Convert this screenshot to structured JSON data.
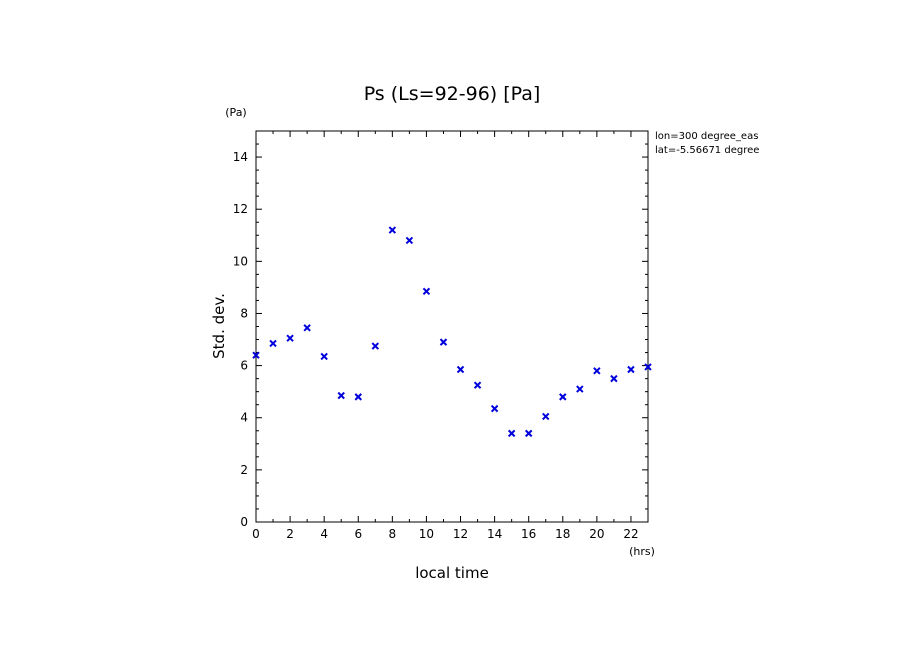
{
  "chart_data": {
    "type": "scatter",
    "title": "Ps (Ls=92-96) [Pa]",
    "xlabel": "local time",
    "ylabel": "Std. dev.",
    "x_unit": "(hrs)",
    "y_unit": "(Pa)",
    "annotations": [
      "lon=300 degree_eas",
      "lat=-5.56671 degree"
    ],
    "xlim": [
      0,
      23
    ],
    "ylim": [
      0,
      15
    ],
    "x_ticks": [
      0,
      2,
      4,
      6,
      8,
      10,
      12,
      14,
      16,
      18,
      20,
      22
    ],
    "y_ticks": [
      0,
      2,
      4,
      6,
      8,
      10,
      12,
      14
    ],
    "marker": "x",
    "marker_color": "#0000dd",
    "grid": false,
    "series": [
      {
        "x": [
          0,
          1,
          2,
          3,
          4,
          5,
          6,
          7,
          8,
          9,
          10,
          11,
          12,
          13,
          14,
          15,
          16,
          17,
          18,
          19,
          20,
          21,
          22,
          23
        ],
        "values": [
          6.4,
          6.85,
          7.05,
          7.45,
          6.35,
          4.85,
          4.8,
          6.75,
          11.2,
          10.8,
          8.85,
          6.9,
          5.85,
          5.25,
          4.35,
          3.4,
          3.4,
          4.05,
          4.8,
          5.1,
          5.8,
          5.5,
          5.85,
          5.95
        ]
      }
    ]
  }
}
